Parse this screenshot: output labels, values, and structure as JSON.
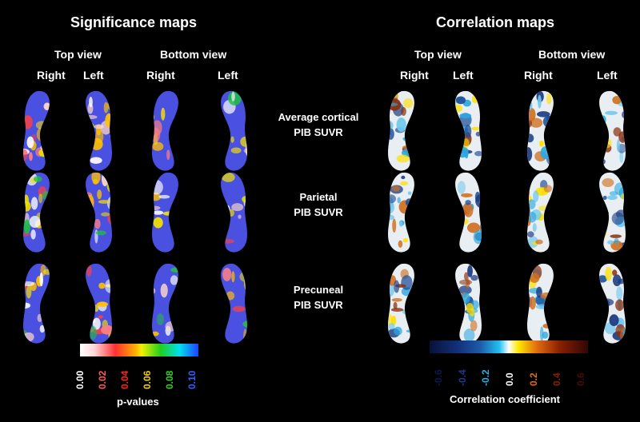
{
  "sig_title": "Significance maps",
  "corr_title": "Correlation maps",
  "top_view": "Top view",
  "bottom_view": "Bottom view",
  "right": "Right",
  "left": "Left",
  "rows": [
    {
      "line1": "Average cortical",
      "line2": "PIB SUVR"
    },
    {
      "line1": "Parietal",
      "line2": "PIB SUVR"
    },
    {
      "line1": "Precuneal",
      "line2": "PIB SUVR"
    }
  ],
  "pvalue_ticks": [
    {
      "label": "0.00",
      "color": "#ffffff"
    },
    {
      "label": "0.02",
      "color": "#ff5a5a"
    },
    {
      "label": "0.04",
      "color": "#ff2020"
    },
    {
      "label": "0.06",
      "color": "#f0d000"
    },
    {
      "label": "0.08",
      "color": "#30d020"
    },
    {
      "label": "0.10",
      "color": "#3060ff"
    }
  ],
  "pvalue_label": "p-values",
  "corr_ticks": [
    {
      "label": "-0.6",
      "color": "#0a1a50"
    },
    {
      "label": "-0.4",
      "color": "#1a3a90"
    },
    {
      "label": "-0.2",
      "color": "#22b0e8"
    },
    {
      "label": "0.0",
      "color": "#ffffff"
    },
    {
      "label": "0.2",
      "color": "#e06a10"
    },
    {
      "label": "0.4",
      "color": "#8a2000"
    },
    {
      "label": "0.6",
      "color": "#4a0a0a"
    }
  ],
  "corr_label": "Correlation coefficient",
  "colors": {
    "sig_base": "#4a50e0",
    "corr_base": "#e8eef2"
  }
}
